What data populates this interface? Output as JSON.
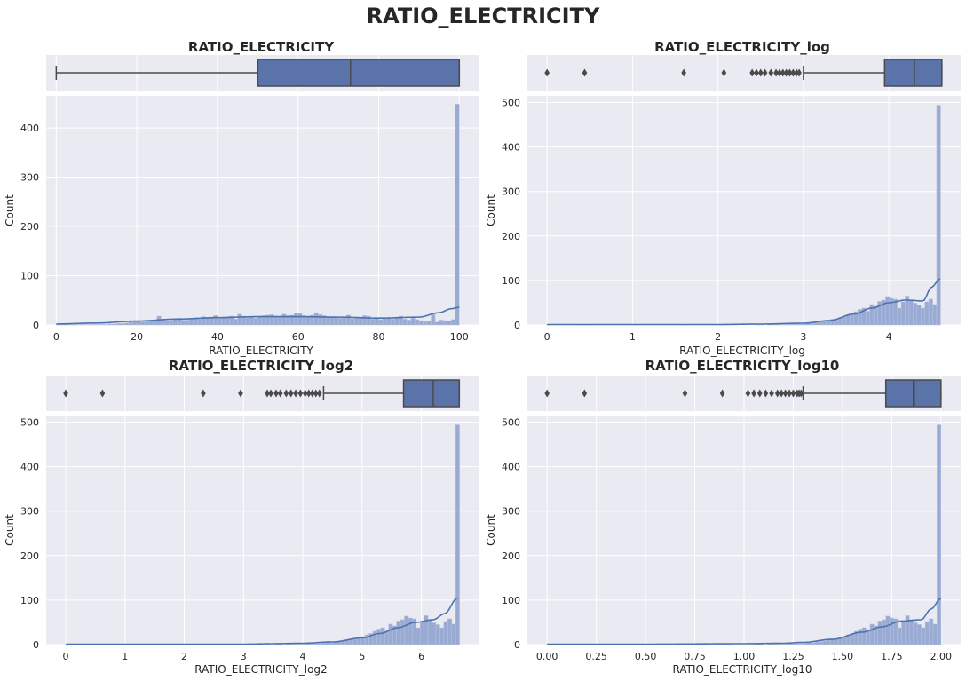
{
  "figure": {
    "title": "RATIO_ELECTRICITY"
  },
  "colors": {
    "panel_bg": "#eaeaf2",
    "grid": "#ffffff",
    "box_fill": "#5a73a8",
    "box_line": "#4a4a4a",
    "hist_fill": "#9aabd3",
    "hist_edge": "#b6c2e0",
    "kde": "#4c72b0",
    "text": "#262626"
  },
  "chart_data": [
    {
      "type": "histogram",
      "title": "RATIO_ELECTRICITY",
      "xlabel": "RATIO_ELECTRICITY",
      "ylabel": "Count",
      "xlim": [
        -2.5,
        105
      ],
      "ylim": [
        0,
        465
      ],
      "xticks": [
        0,
        20,
        40,
        60,
        80,
        100
      ],
      "xtick_labels": [
        "0",
        "20",
        "40",
        "60",
        "80",
        "100"
      ],
      "yticks": [
        0,
        100,
        200,
        300,
        400
      ],
      "ytick_labels": [
        "0",
        "100",
        "200",
        "300",
        "400"
      ],
      "boxplot": {
        "whisker_low": 0,
        "q1": 50,
        "median": 73,
        "q3": 100,
        "whisker_high": 100,
        "outliers": []
      },
      "bins": {
        "start": 0,
        "end": 100,
        "count": 100,
        "counts": [
          1,
          1,
          1,
          1,
          1,
          1,
          1,
          1,
          1,
          1,
          1,
          1,
          1,
          2,
          2,
          3,
          3,
          4,
          6,
          7,
          8,
          6,
          7,
          9,
          10,
          18,
          11,
          8,
          9,
          12,
          14,
          10,
          10,
          14,
          15,
          12,
          17,
          14,
          15,
          19,
          13,
          16,
          17,
          18,
          12,
          22,
          18,
          15,
          16,
          14,
          17,
          19,
          20,
          21,
          18,
          16,
          22,
          19,
          20,
          24,
          23,
          19,
          18,
          20,
          25,
          21,
          19,
          17,
          16,
          15,
          14,
          17,
          20,
          13,
          16,
          15,
          19,
          18,
          12,
          14,
          11,
          13,
          15,
          12,
          16,
          18,
          12,
          10,
          14,
          11,
          9,
          7,
          8,
          21,
          6,
          10,
          9,
          8,
          11,
          448
        ]
      },
      "kde": {
        "x": [
          0,
          10,
          20,
          30,
          40,
          50,
          60,
          70,
          80,
          90,
          95,
          98,
          100
        ],
        "y": [
          2,
          4,
          8,
          12,
          15,
          17,
          17,
          16,
          14,
          16,
          25,
          33,
          36
        ]
      }
    },
    {
      "type": "histogram",
      "title": "RATIO_ELECTRICITY_log",
      "xlabel": "RATIO_ELECTRICITY_log",
      "ylabel": "Count",
      "xlim": [
        -0.23,
        4.84
      ],
      "ylim": [
        0,
        515
      ],
      "xticks": [
        0,
        1,
        2,
        3,
        4
      ],
      "xtick_labels": [
        "0",
        "1",
        "2",
        "3",
        "4"
      ],
      "yticks": [
        0,
        100,
        200,
        300,
        400,
        500
      ],
      "ytick_labels": [
        "0",
        "100",
        "200",
        "300",
        "400",
        "500"
      ],
      "boxplot": {
        "whisker_low": 3.0,
        "q1": 3.95,
        "median": 4.3,
        "q3": 4.62,
        "whisker_high": 4.62,
        "outliers": [
          0,
          0.44,
          1.6,
          2.07,
          2.4,
          2.45,
          2.5,
          2.55,
          2.62,
          2.68,
          2.72,
          2.76,
          2.8,
          2.84,
          2.88,
          2.92,
          2.95
        ]
      },
      "bins": {
        "start": 0,
        "end": 4.6052,
        "count": 100,
        "counts": [
          1,
          0,
          0,
          0,
          0,
          0,
          0,
          0,
          0,
          1,
          0,
          0,
          0,
          0,
          0,
          0,
          0,
          0,
          0,
          0,
          0,
          0,
          0,
          0,
          0,
          0,
          0,
          0,
          0,
          0,
          0,
          0,
          0,
          0,
          1,
          0,
          0,
          0,
          0,
          0,
          0,
          0,
          0,
          0,
          1,
          0,
          0,
          0,
          0,
          0,
          0,
          0,
          0,
          1,
          1,
          0,
          1,
          1,
          1,
          1,
          1,
          2,
          2,
          2,
          2,
          3,
          5,
          4,
          6,
          7,
          8,
          10,
          13,
          12,
          16,
          18,
          22,
          25,
          30,
          35,
          38,
          31,
          46,
          42,
          53,
          56,
          64,
          60,
          58,
          38,
          52,
          65,
          56,
          49,
          45,
          38,
          52,
          58,
          46,
          494
        ]
      },
      "kde": {
        "x": [
          0,
          1,
          2,
          2.5,
          3,
          3.3,
          3.6,
          3.8,
          4.0,
          4.2,
          4.4,
          4.5,
          4.6
        ],
        "y": [
          1,
          1,
          1,
          2,
          4,
          10,
          25,
          38,
          50,
          56,
          54,
          85,
          104
        ]
      }
    },
    {
      "type": "histogram",
      "title": "RATIO_ELECTRICITY_log2",
      "xlabel": "RATIO_ELECTRICITY_log2",
      "ylabel": "Count",
      "xlim": [
        -0.33,
        6.98
      ],
      "ylim": [
        0,
        515
      ],
      "xticks": [
        0,
        1,
        2,
        3,
        4,
        5,
        6
      ],
      "xtick_labels": [
        "0",
        "1",
        "2",
        "3",
        "4",
        "5",
        "6"
      ],
      "yticks": [
        0,
        100,
        200,
        300,
        400,
        500
      ],
      "ytick_labels": [
        "0",
        "100",
        "200",
        "300",
        "400",
        "500"
      ],
      "boxplot": {
        "whisker_low": 4.35,
        "q1": 5.7,
        "median": 6.2,
        "q3": 6.64,
        "whisker_high": 6.64,
        "outliers": [
          0,
          0.62,
          2.32,
          2.95,
          3.4,
          3.46,
          3.55,
          3.62,
          3.72,
          3.8,
          3.88,
          3.96,
          4.04,
          4.1,
          4.16,
          4.22,
          4.28
        ]
      },
      "bins": {
        "start": 0,
        "end": 6.6439,
        "count": 100,
        "counts": [
          1,
          0,
          0,
          0,
          0,
          0,
          0,
          0,
          0,
          1,
          0,
          0,
          0,
          0,
          0,
          0,
          0,
          0,
          0,
          0,
          0,
          0,
          0,
          0,
          0,
          0,
          0,
          0,
          0,
          0,
          0,
          0,
          0,
          0,
          1,
          0,
          0,
          0,
          0,
          0,
          0,
          0,
          0,
          0,
          1,
          0,
          0,
          0,
          0,
          0,
          0,
          0,
          0,
          1,
          1,
          0,
          1,
          1,
          1,
          1,
          1,
          2,
          2,
          2,
          2,
          3,
          5,
          4,
          6,
          7,
          8,
          10,
          13,
          12,
          16,
          18,
          22,
          25,
          30,
          35,
          38,
          31,
          46,
          42,
          53,
          56,
          64,
          60,
          58,
          38,
          52,
          65,
          56,
          49,
          45,
          38,
          52,
          58,
          46,
          494
        ]
      },
      "kde": {
        "x": [
          0,
          1,
          2,
          3,
          3.5,
          4,
          4.5,
          5,
          5.3,
          5.6,
          5.9,
          6.2,
          6.4,
          6.6
        ],
        "y": [
          1,
          1,
          1,
          1,
          2,
          3,
          6,
          15,
          25,
          38,
          50,
          56,
          70,
          104
        ]
      }
    },
    {
      "type": "histogram",
      "title": "RATIO_ELECTRICITY_log10",
      "xlabel": "RATIO_ELECTRICITY_log10",
      "ylabel": "Count",
      "xlim": [
        -0.1,
        2.1
      ],
      "ylim": [
        0,
        515
      ],
      "xticks": [
        0,
        0.25,
        0.5,
        0.75,
        1.0,
        1.25,
        1.5,
        1.75,
        2.0
      ],
      "xtick_labels": [
        "0.00",
        "0.25",
        "0.50",
        "0.75",
        "1.00",
        "1.25",
        "1.50",
        "1.75",
        "2.00"
      ],
      "yticks": [
        0,
        100,
        200,
        300,
        400,
        500
      ],
      "ytick_labels": [
        "0",
        "100",
        "200",
        "300",
        "400",
        "500"
      ],
      "boxplot": {
        "whisker_low": 1.3,
        "q1": 1.72,
        "median": 1.86,
        "q3": 2.0,
        "whisker_high": 2.0,
        "outliers": [
          0,
          0.19,
          0.7,
          0.89,
          1.02,
          1.05,
          1.08,
          1.11,
          1.14,
          1.17,
          1.19,
          1.21,
          1.23,
          1.25,
          1.27,
          1.28,
          1.29
        ]
      },
      "bins": {
        "start": 0,
        "end": 2.0,
        "count": 100,
        "counts": [
          1,
          0,
          0,
          0,
          0,
          0,
          0,
          0,
          0,
          1,
          0,
          0,
          0,
          0,
          0,
          0,
          0,
          0,
          0,
          0,
          0,
          0,
          0,
          0,
          0,
          0,
          0,
          0,
          0,
          0,
          0,
          0,
          0,
          0,
          1,
          0,
          0,
          0,
          0,
          0,
          0,
          0,
          0,
          0,
          1,
          0,
          0,
          0,
          0,
          0,
          0,
          0,
          0,
          1,
          1,
          0,
          1,
          1,
          1,
          1,
          1,
          2,
          2,
          2,
          2,
          3,
          5,
          4,
          6,
          7,
          8,
          10,
          13,
          12,
          16,
          18,
          22,
          25,
          30,
          35,
          38,
          31,
          46,
          42,
          53,
          56,
          64,
          60,
          58,
          38,
          52,
          65,
          56,
          49,
          45,
          38,
          52,
          58,
          46,
          494
        ]
      },
      "kde": {
        "x": [
          0,
          0.5,
          1.0,
          1.2,
          1.3,
          1.45,
          1.6,
          1.7,
          1.8,
          1.9,
          1.95,
          2.0
        ],
        "y": [
          1,
          1,
          2,
          3,
          5,
          12,
          28,
          40,
          53,
          56,
          80,
          104
        ]
      }
    }
  ]
}
